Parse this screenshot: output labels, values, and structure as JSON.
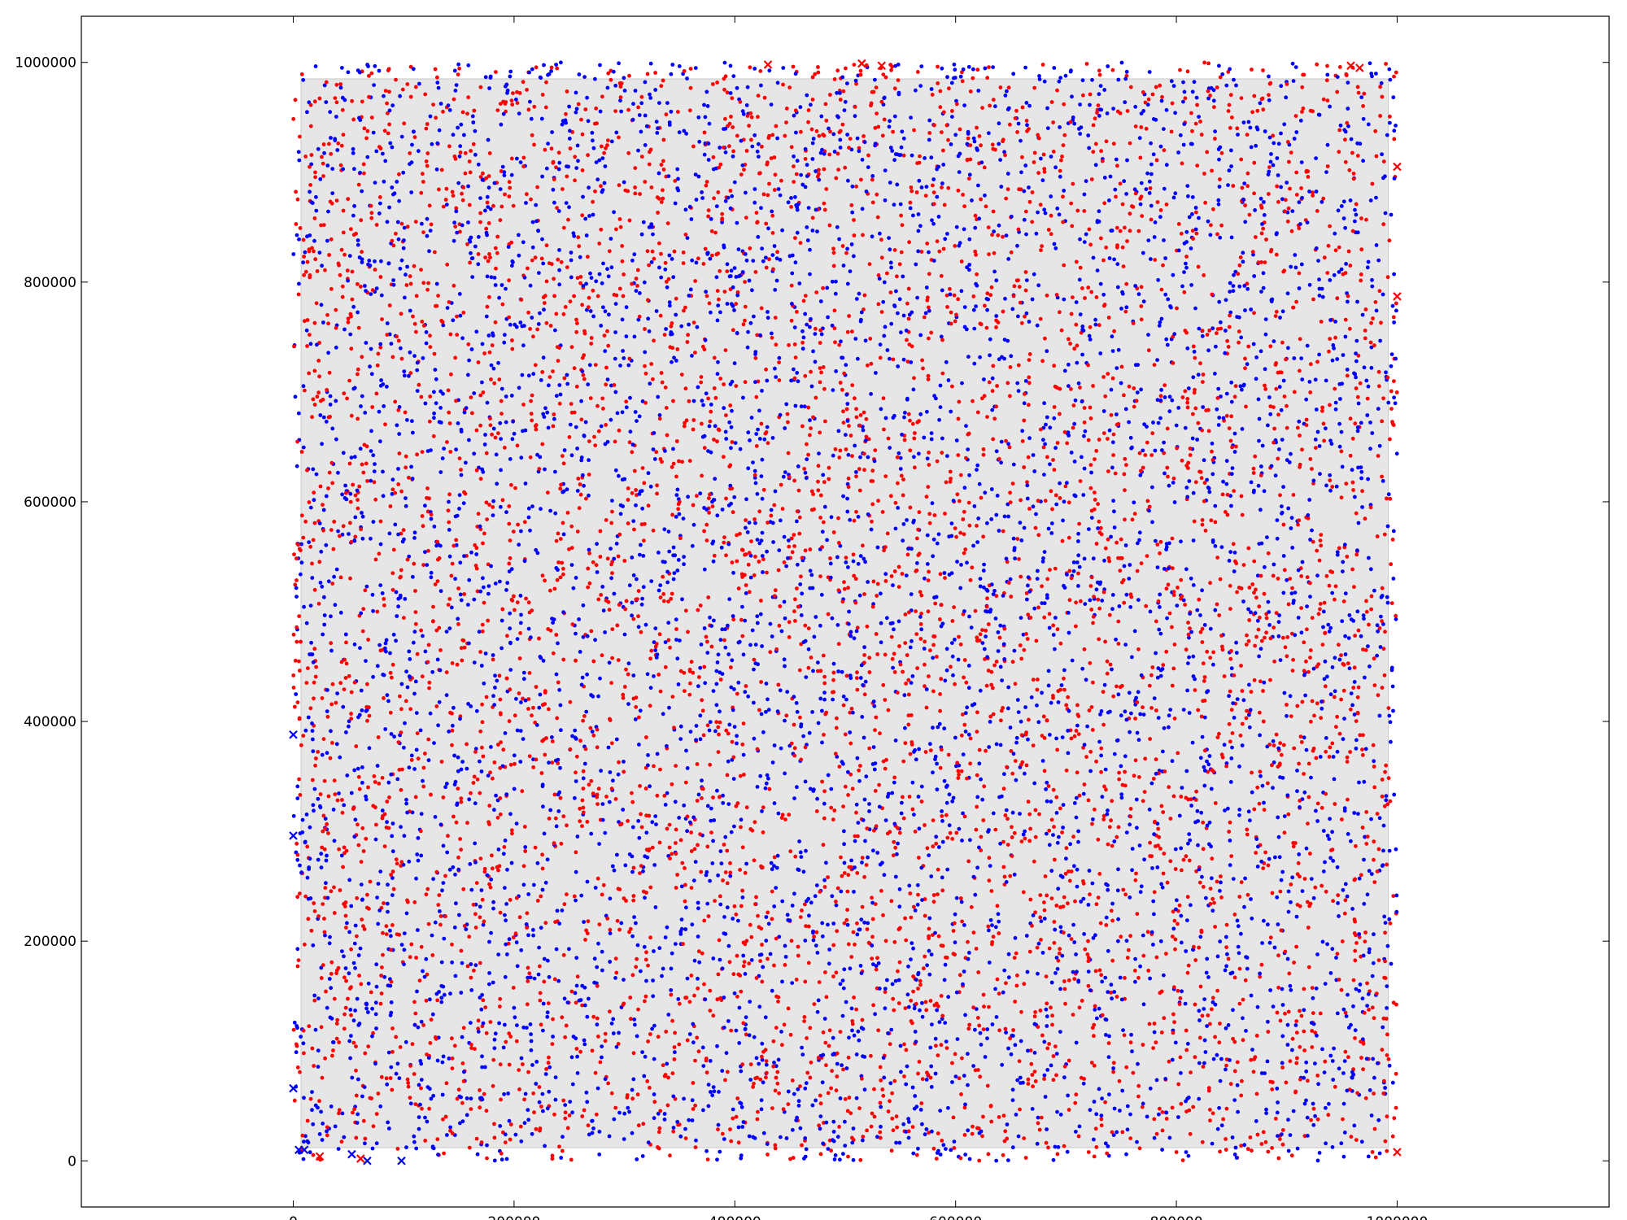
{
  "chart_data": {
    "type": "scatter",
    "title": "",
    "xlabel": "",
    "ylabel": "",
    "xlim": [
      -192000,
      1192000
    ],
    "ylim": [
      -42000,
      1042000
    ],
    "x_ticks": [
      0,
      200000,
      400000,
      600000,
      800000,
      1000000
    ],
    "x_tick_labels": [
      "0",
      "200000",
      "400000",
      "600000",
      "800000",
      "1000000"
    ],
    "y_ticks": [
      0,
      200000,
      400000,
      600000,
      800000,
      1000000
    ],
    "y_tick_labels": [
      "0",
      "200000",
      "400000",
      "600000",
      "800000",
      "1000000"
    ],
    "grid": false,
    "legend": "none",
    "region": {
      "description_value": "shaded rectangle",
      "x": [
        7000,
        992000
      ],
      "y": [
        12000,
        985000
      ],
      "fill": "#e6e6e6",
      "stroke": "#c8c8c8"
    },
    "point_spread": {
      "x": [
        0,
        1000000
      ],
      "y": [
        0,
        1000000
      ]
    },
    "series": [
      {
        "color": "#ff0000",
        "marker": "dot",
        "approx_count": 5000,
        "cross_markers": [
          [
            430000,
            998000
          ],
          [
            515000,
            999000
          ],
          [
            533000,
            997000
          ],
          [
            958000,
            997000
          ],
          [
            966000,
            995000
          ],
          [
            1000000,
            905000
          ],
          [
            1000000,
            787000
          ],
          [
            1000000,
            8000
          ],
          [
            24000,
            4000
          ],
          [
            61000,
            2000
          ]
        ]
      },
      {
        "color": "#0000ff",
        "marker": "dot",
        "approx_count": 5000,
        "cross_markers": [
          [
            0,
            388000
          ],
          [
            0,
            296000
          ],
          [
            0,
            66000
          ],
          [
            67000,
            0
          ],
          [
            98000,
            0
          ],
          [
            53000,
            6000
          ],
          [
            10000,
            10000
          ],
          [
            5000,
            10000
          ]
        ]
      }
    ]
  }
}
